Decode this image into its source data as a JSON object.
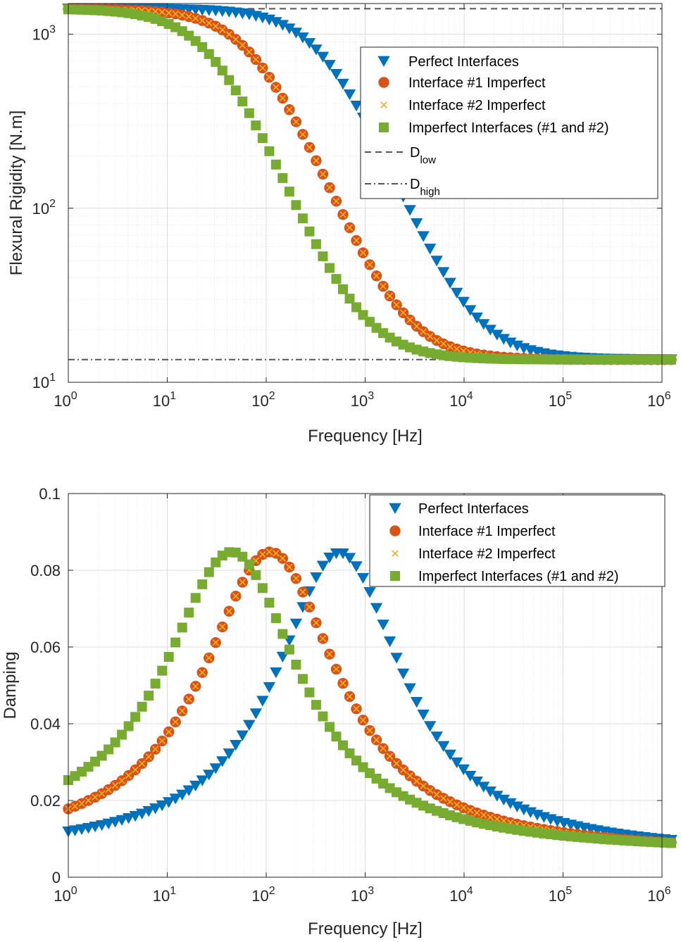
{
  "colors": {
    "perfect": "#0072BD",
    "if1": "#D95319",
    "if2": "#EDB120",
    "both": "#77AC30",
    "ref_line": "#555555",
    "grid": "#dcdcdc"
  },
  "chart_data": [
    {
      "type": "scatter",
      "xscale": "log",
      "yscale": "log",
      "xlim": [
        1,
        1000000
      ],
      "ylim": [
        10,
        1500
      ],
      "xlabel": "Frequency [Hz]",
      "ylabel": "Flexural Rigidity [N.m]",
      "x_ticks": [
        {
          "base": "10",
          "exp": "0",
          "value": 1
        },
        {
          "base": "10",
          "exp": "1",
          "value": 10
        },
        {
          "base": "10",
          "exp": "2",
          "value": 100
        },
        {
          "base": "10",
          "exp": "3",
          "value": 1000
        },
        {
          "base": "10",
          "exp": "4",
          "value": 10000
        },
        {
          "base": "10",
          "exp": "5",
          "value": 100000
        },
        {
          "base": "10",
          "exp": "6",
          "value": 1000000
        }
      ],
      "y_ticks": [
        {
          "base": "10",
          "exp": "1",
          "value": 10
        },
        {
          "base": "10",
          "exp": "2",
          "value": 100
        },
        {
          "base": "10",
          "exp": "3",
          "value": 1000
        }
      ],
      "grid": true,
      "legend_position": "top-right",
      "series": [
        {
          "name": "Perfect Interfaces",
          "marker": "triangle-down",
          "color_key": "perfect",
          "D_low": 1400,
          "D_high": 13.5,
          "f_c": 400
        },
        {
          "name": "Interface #1 Imperfect",
          "marker": "circle",
          "color_key": "if1",
          "D_low": 1400,
          "D_high": 13.5,
          "f_c": 80
        },
        {
          "name": "Interface #2 Imperfect",
          "marker": "x",
          "color_key": "if2",
          "D_low": 1400,
          "D_high": 13.5,
          "f_c": 80
        },
        {
          "name": "Imperfect Interfaces (#1 and #2)",
          "marker": "square",
          "color_key": "both",
          "D_low": 1400,
          "D_high": 13.5,
          "f_c": 30
        }
      ],
      "reference_lines": [
        {
          "label_main": "D",
          "label_sub": "low",
          "value": 1400,
          "style": "dashed"
        },
        {
          "label_main": "D",
          "label_sub": "high",
          "value": 13.5,
          "style": "dashdot"
        }
      ]
    },
    {
      "type": "scatter",
      "xscale": "log",
      "yscale": "linear",
      "xlim": [
        1,
        1000000
      ],
      "ylim": [
        0,
        0.1
      ],
      "xlabel": "Frequency [Hz]",
      "ylabel": "Damping",
      "x_ticks": [
        {
          "base": "10",
          "exp": "0",
          "value": 1
        },
        {
          "base": "10",
          "exp": "1",
          "value": 10
        },
        {
          "base": "10",
          "exp": "2",
          "value": 100
        },
        {
          "base": "10",
          "exp": "3",
          "value": 1000
        },
        {
          "base": "10",
          "exp": "4",
          "value": 10000
        },
        {
          "base": "10",
          "exp": "5",
          "value": 100000
        },
        {
          "base": "10",
          "exp": "6",
          "value": 1000000
        }
      ],
      "y_ticks": [
        {
          "label": "0",
          "value": 0
        },
        {
          "label": "0.02",
          "value": 0.02
        },
        {
          "label": "0.04",
          "value": 0.04
        },
        {
          "label": "0.06",
          "value": 0.06
        },
        {
          "label": "0.08",
          "value": 0.08
        },
        {
          "label": "0.1",
          "value": 0.1
        }
      ],
      "grid": true,
      "legend_position": "top-right",
      "series": [
        {
          "name": "Perfect Interfaces",
          "marker": "triangle-down",
          "color_key": "perfect",
          "peak_freq": 550,
          "peak": 0.0845,
          "base_low": 0.0058,
          "base_high": 0.0055,
          "width_decades": 0.85
        },
        {
          "name": "Interface #1 Imperfect",
          "marker": "circle",
          "color_key": "if1",
          "peak_freq": 110,
          "peak": 0.0848,
          "base_low": 0.0065,
          "base_high": 0.0058,
          "width_decades": 0.9
        },
        {
          "name": "Interface #2 Imperfect",
          "marker": "x",
          "color_key": "if2",
          "peak_freq": 110,
          "peak": 0.0848,
          "base_low": 0.0065,
          "base_high": 0.0058,
          "width_decades": 0.9
        },
        {
          "name": "Imperfect Interfaces (#1 and #2)",
          "marker": "square",
          "color_key": "both",
          "peak_freq": 45,
          "peak": 0.0848,
          "base_low": 0.01,
          "base_high": 0.0062,
          "width_decades": 0.9
        }
      ]
    }
  ]
}
